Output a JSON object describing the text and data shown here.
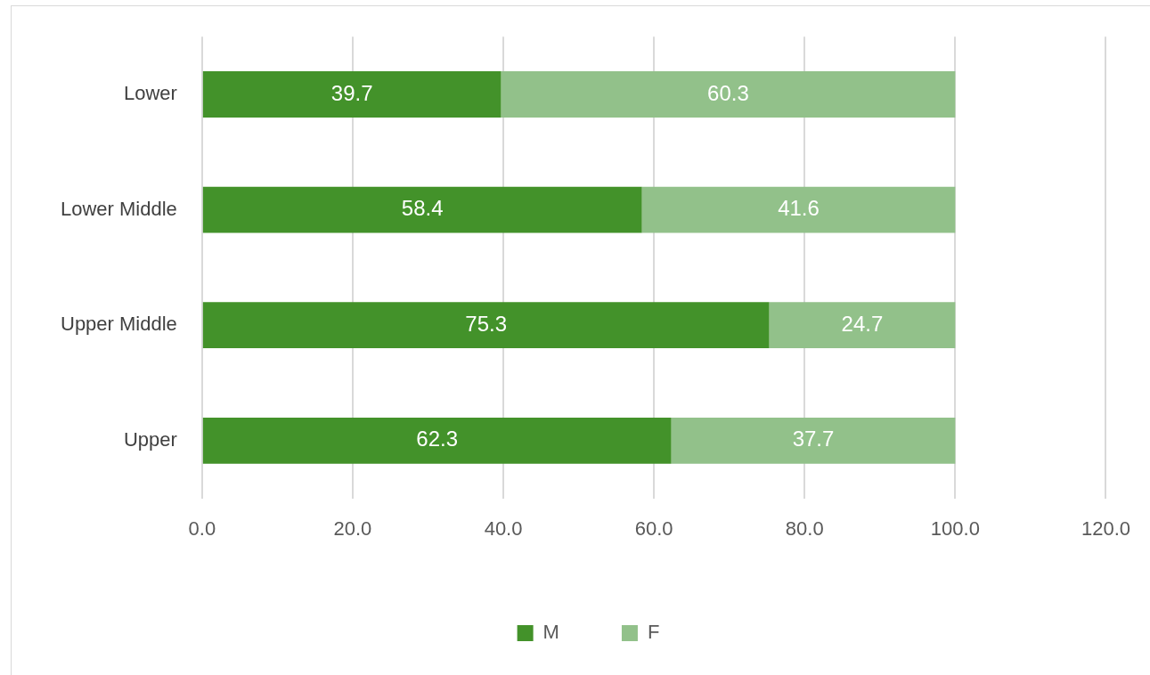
{
  "chart_data": {
    "type": "bar",
    "orientation": "horizontal",
    "stacked": true,
    "categories": [
      "Lower",
      "Lower Middle",
      "Upper Middle",
      "Upper"
    ],
    "series": [
      {
        "name": "M",
        "color": "#43922a",
        "values": [
          39.7,
          58.4,
          75.3,
          62.3
        ]
      },
      {
        "name": "F",
        "color": "#92c18a",
        "values": [
          60.3,
          41.6,
          24.7,
          37.7
        ]
      }
    ],
    "xlim": [
      0,
      120
    ],
    "xticks": [
      {
        "value": 0,
        "label": "0.0"
      },
      {
        "value": 20,
        "label": "20.0"
      },
      {
        "value": 40,
        "label": "40.0"
      },
      {
        "value": 60,
        "label": "60.0"
      },
      {
        "value": 80,
        "label": "80.0"
      },
      {
        "value": 100,
        "label": "100.0"
      },
      {
        "value": 120,
        "label": "120.0"
      }
    ],
    "grid": "x",
    "legend": "bottom",
    "data_labels": true
  }
}
